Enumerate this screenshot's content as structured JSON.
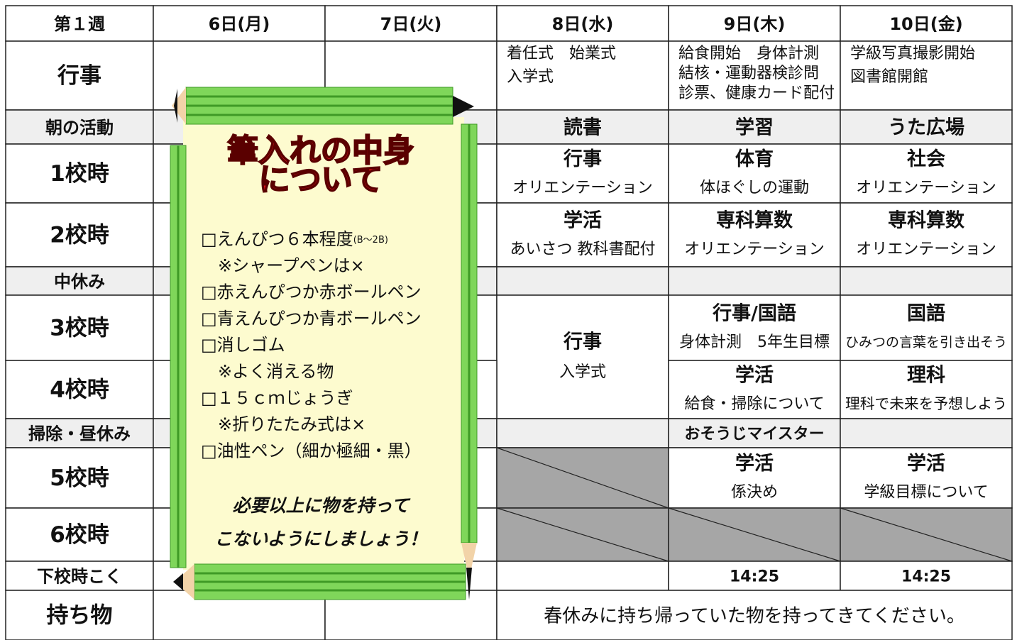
{
  "header": [
    "第１週",
    "6日(月)",
    "7日(火)",
    "8日(水)",
    "9日(木)",
    "10日(金)"
  ],
  "row_labels": [
    "行事",
    "朝の活動",
    "1校時",
    "2校時",
    "中休み",
    "3校時",
    "4校時",
    "掃除・昼休み",
    "5校時",
    "6校時",
    "下校時こく",
    "持ち物"
  ],
  "cells": [
    {
      "lines": [
        "着任式　始業式",
        "入学式"
      ]
    },
    {
      "lines": [
        "給食開始　身体計測",
        "結核・運動器検診問",
        "診票、健康カード配付"
      ]
    },
    {
      "lines": [
        "学級写真撮影開始",
        "図書館開館"
      ]
    },
    {
      "main": "読書"
    },
    {
      "main": "学習"
    },
    {
      "main": "うた広場"
    },
    {
      "main": "行事",
      "sub": "オリエンテーション"
    },
    {
      "main": "体育",
      "sub": "体ほぐしの運動"
    },
    {
      "main": "社会",
      "sub": "オリエンテーション"
    },
    {
      "main": "学活",
      "sub": "あいさつ 教科書配付"
    },
    {
      "main": "専科算数",
      "sub": "オリエンテーション"
    },
    {
      "main": "専科算数",
      "sub": "オリエンテーション"
    },
    {
      "main": "行事",
      "sub": "入学式"
    },
    {
      "main": "行事/国語",
      "sub": "身体計測　5年生目標"
    },
    {
      "main": "国語",
      "sub": "ひみつの言葉を引き出そう"
    },
    {
      "main": "学活",
      "sub": "給食・掃除について"
    },
    {
      "main": "理科",
      "sub": "理科で未来を予想しよう"
    },
    {
      "main": "おそうじマイスター"
    },
    {
      "main": "学活",
      "sub": "係決め"
    },
    {
      "main": "学活",
      "sub": "学級目標について"
    },
    {
      "main": "14:25"
    },
    {
      "main": "14:25"
    },
    {
      "text": "春休みに持ち帰っていた物を持ってきてください。"
    }
  ],
  "scroll": {
    "title": [
      "筆入れの中身",
      "について"
    ],
    "item_note": "(B～2B)",
    "items": [
      "□えんぴつ６本程度",
      "　※シャープペンは×",
      "□赤えんぴつか赤ボールペン",
      "□青えんぴつか青ボールペン",
      "□消しゴム",
      "　※よく消える物",
      "□１５ｃｍじょうぎ",
      "　※折りたたみ式は×",
      "□油性ペン（細か極細・黒）"
    ],
    "note": [
      "必要以上に物を持って",
      "こないようにしましょう！"
    ]
  }
}
